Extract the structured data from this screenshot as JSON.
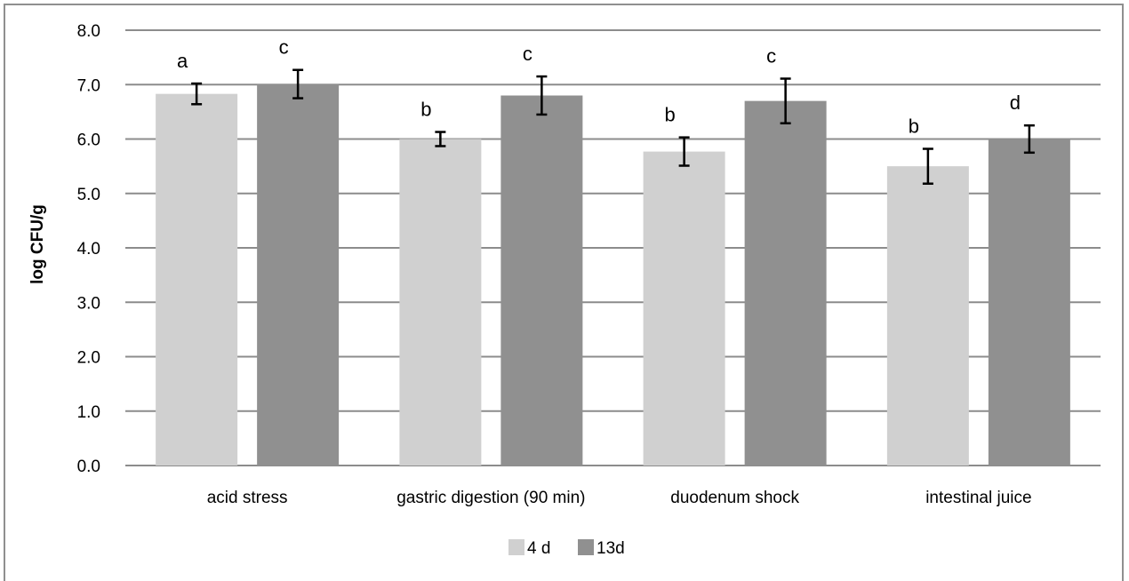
{
  "chart_data": {
    "type": "bar",
    "title": "",
    "xlabel": "",
    "ylabel": "log CFU/g",
    "ylim": [
      0,
      8
    ],
    "yticks": [
      "0.0",
      "1.0",
      "2.0",
      "3.0",
      "4.0",
      "5.0",
      "6.0",
      "7.0",
      "8.0"
    ],
    "grid": true,
    "legend_position": "bottom",
    "categories": [
      "acid stress",
      "gastric digestion (90 min)",
      "duodenum shock",
      "intestinal juice"
    ],
    "series": [
      {
        "name": "4 d",
        "color": "#d0d0d0",
        "values": [
          6.83,
          6.0,
          5.77,
          5.5
        ],
        "errors": [
          0.19,
          0.13,
          0.26,
          0.32
        ],
        "letters": [
          "a",
          "b",
          "b",
          "b"
        ]
      },
      {
        "name": "13d",
        "color": "#909090",
        "values": [
          7.01,
          6.8,
          6.7,
          6.0
        ],
        "errors": [
          0.26,
          0.35,
          0.41,
          0.25
        ],
        "letters": [
          "c",
          "c",
          "c",
          "d"
        ]
      }
    ]
  }
}
